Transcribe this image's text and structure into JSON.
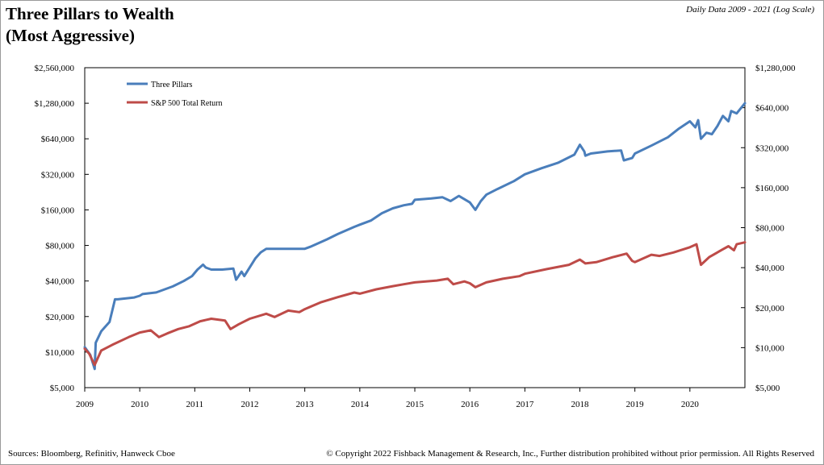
{
  "header": {
    "title_line1": "Three Pillars to Wealth",
    "title_line2": "(Most Aggressive)",
    "subtitle": "Daily Data 2009 - 2021 (Log Scale)"
  },
  "footer": {
    "sources": "Sources: Bloomberg, Refinitiv, Hanweck Cboe",
    "copyright": "© Copyright 2022 Fishback Management & Research, Inc., Further distribution prohibited without prior permission. All Rights Reserved"
  },
  "colors": {
    "three_pillars": "#4a7ebb",
    "sp500": "#be4b48",
    "axis": "#000000",
    "frame": "#9a9a9a"
  },
  "chart_data": {
    "type": "line",
    "scale": "log",
    "grid": false,
    "legend_position": "top-left",
    "xlim": [
      2009,
      2021.0
    ],
    "x_ticks": [
      "2009",
      "2010",
      "2011",
      "2012",
      "2013",
      "2014",
      "2015",
      "2016",
      "2017",
      "2018",
      "2019",
      "2020"
    ],
    "left_axis": {
      "ylim": [
        5000,
        2560000
      ],
      "ticks": [
        5000,
        10000,
        20000,
        40000,
        80000,
        160000,
        320000,
        640000,
        1280000,
        2560000
      ],
      "tick_labels": [
        "$5,000",
        "$10,000",
        "$20,000",
        "$40,000",
        "$80,000",
        "$160,000",
        "$320,000",
        "$640,000",
        "$1,280,000",
        "$2,560,000"
      ]
    },
    "right_axis": {
      "ylim": [
        5000,
        1280000
      ],
      "ticks": [
        5000,
        10000,
        20000,
        40000,
        80000,
        160000,
        320000,
        640000,
        1280000
      ],
      "tick_labels": [
        "$5,000",
        "$10,000",
        "$20,000",
        "$40,000",
        "$80,000",
        "$160,000",
        "$320,000",
        "$640,000",
        "$1,280,000"
      ]
    },
    "series": [
      {
        "name": "Three Pillars",
        "axis": "left",
        "x": [
          2009.0,
          2009.1,
          2009.18,
          2009.2,
          2009.3,
          2009.45,
          2009.55,
          2009.6,
          2009.9,
          2010.0,
          2010.05,
          2010.3,
          2010.6,
          2010.8,
          2010.95,
          2011.05,
          2011.15,
          2011.2,
          2011.3,
          2011.5,
          2011.7,
          2011.75,
          2011.85,
          2011.9,
          2012.1,
          2012.2,
          2012.3,
          2012.5,
          2012.8,
          2013.0,
          2013.1,
          2013.4,
          2013.6,
          2013.9,
          2014.0,
          2014.2,
          2014.4,
          2014.6,
          2014.8,
          2014.95,
          2015.0,
          2015.3,
          2015.5,
          2015.65,
          2015.8,
          2016.0,
          2016.1,
          2016.2,
          2016.3,
          2016.5,
          2016.8,
          2017.0,
          2017.3,
          2017.6,
          2017.9,
          2018.0,
          2018.08,
          2018.1,
          2018.2,
          2018.5,
          2018.75,
          2018.8,
          2018.95,
          2019.0,
          2019.3,
          2019.6,
          2019.8,
          2020.0,
          2020.1,
          2020.15,
          2020.2,
          2020.3,
          2020.4,
          2020.5,
          2020.6,
          2020.7,
          2020.75,
          2020.85,
          2021.0
        ],
        "values": [
          11000,
          9500,
          7200,
          12000,
          15000,
          18000,
          28000,
          28000,
          29000,
          30000,
          31000,
          32000,
          36000,
          40000,
          44000,
          50000,
          55000,
          52000,
          50000,
          50000,
          51000,
          41000,
          48000,
          44000,
          62000,
          70000,
          75000,
          75000,
          75000,
          75000,
          78000,
          90000,
          100000,
          115000,
          120000,
          130000,
          150000,
          165000,
          175000,
          180000,
          195000,
          200000,
          205000,
          190000,
          210000,
          185000,
          160000,
          190000,
          215000,
          240000,
          280000,
          320000,
          360000,
          400000,
          470000,
          570000,
          500000,
          460000,
          480000,
          500000,
          510000,
          420000,
          440000,
          480000,
          560000,
          660000,
          780000,
          900000,
          800000,
          920000,
          640000,
          720000,
          700000,
          820000,
          1000000,
          900000,
          1100000,
          1050000,
          1280000
        ]
      },
      {
        "name": "S&P 500 Total Return",
        "axis": "right",
        "x": [
          2009.0,
          2009.08,
          2009.18,
          2009.3,
          2009.5,
          2009.8,
          2010.0,
          2010.2,
          2010.35,
          2010.5,
          2010.7,
          2010.9,
          2011.1,
          2011.3,
          2011.55,
          2011.65,
          2011.8,
          2012.0,
          2012.3,
          2012.45,
          2012.7,
          2012.9,
          2013.0,
          2013.3,
          2013.6,
          2013.9,
          2014.0,
          2014.3,
          2014.6,
          2014.8,
          2015.0,
          2015.4,
          2015.6,
          2015.7,
          2015.9,
          2016.0,
          2016.1,
          2016.3,
          2016.6,
          2016.9,
          2017.0,
          2017.4,
          2017.8,
          2018.0,
          2018.1,
          2018.3,
          2018.6,
          2018.85,
          2018.95,
          2019.0,
          2019.3,
          2019.45,
          2019.7,
          2020.0,
          2020.12,
          2020.2,
          2020.35,
          2020.6,
          2020.7,
          2020.8,
          2020.85,
          2021.0
        ],
        "values": [
          9800,
          9000,
          7400,
          9500,
          10500,
          12000,
          13000,
          13500,
          12000,
          12800,
          13800,
          14500,
          15800,
          16500,
          16000,
          13800,
          15000,
          16500,
          18000,
          17000,
          19000,
          18500,
          19500,
          22000,
          24000,
          26000,
          25500,
          27500,
          29000,
          30000,
          31000,
          32000,
          33000,
          30000,
          31500,
          30500,
          28500,
          31000,
          33000,
          34500,
          36000,
          39000,
          42000,
          46000,
          43000,
          44000,
          48000,
          51000,
          45000,
          44000,
          50000,
          49000,
          52000,
          57000,
          60000,
          42000,
          48000,
          55000,
          58000,
          54000,
          60000,
          62000
        ]
      }
    ]
  }
}
